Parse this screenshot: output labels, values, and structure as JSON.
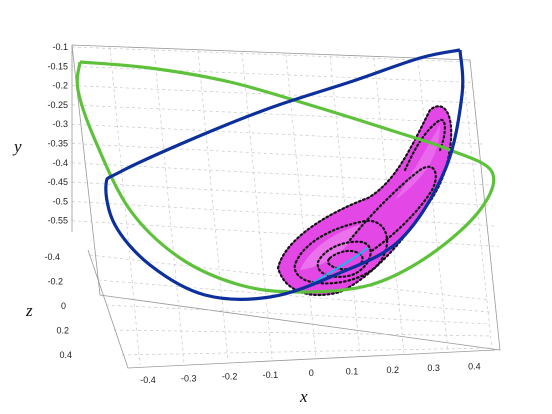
{
  "chart_data": {
    "type": "line",
    "projection": "3d",
    "grid": true,
    "xlabel": "x",
    "ylabel": "y",
    "zlabel": "z",
    "xlim": [
      -0.45,
      0.45
    ],
    "ylim": [
      -0.58,
      -0.1
    ],
    "zlim": [
      -0.4,
      0.4
    ],
    "x_ticks": [
      "-0.4",
      "-0.3",
      "-0.2",
      "-0.1",
      "0",
      "0.1",
      "0.2",
      "0.3",
      "0.4"
    ],
    "y_ticks": [
      "-0.1",
      "-0.15",
      "-0.2",
      "-0.25",
      "-0.3",
      "-0.35",
      "-0.4",
      "-0.45",
      "-0.5",
      "-0.55"
    ],
    "z_ticks": [
      "-0.4",
      "-0.2",
      "0",
      "0.2",
      "0.4"
    ],
    "colors": {
      "green_orbit": "#5ec13b",
      "blue_orbit": "#0c2f9c",
      "surface": "#e23ee6",
      "dotted_orbits": "#111111",
      "cyan_segment": "#19b8e8"
    },
    "series": [
      {
        "style": "solid",
        "color": "#5ec13b",
        "points": [
          [
            -0.35,
            -0.14
          ],
          [
            -0.1,
            -0.17
          ],
          [
            0.15,
            -0.22
          ],
          [
            0.3,
            -0.27
          ],
          [
            0.42,
            -0.34
          ],
          [
            0.47,
            -0.38
          ],
          [
            0.44,
            -0.43
          ],
          [
            0.3,
            -0.5
          ],
          [
            0.1,
            -0.56
          ],
          [
            -0.05,
            -0.56
          ],
          [
            -0.2,
            -0.53
          ],
          [
            -0.3,
            -0.45
          ],
          [
            -0.35,
            -0.3
          ],
          [
            -0.37,
            -0.18
          ],
          [
            -0.35,
            -0.14
          ]
        ]
      },
      {
        "style": "solid",
        "color": "#0c2f9c",
        "points": [
          [
            0.4,
            -0.1
          ],
          [
            0.2,
            -0.14
          ],
          [
            0.0,
            -0.21
          ],
          [
            -0.2,
            -0.3
          ],
          [
            -0.38,
            -0.4
          ],
          [
            -0.38,
            -0.46
          ],
          [
            -0.3,
            -0.55
          ],
          [
            -0.15,
            -0.6
          ],
          [
            0.05,
            -0.58
          ],
          [
            0.25,
            -0.5
          ],
          [
            0.38,
            -0.35
          ],
          [
            0.42,
            -0.15
          ],
          [
            0.4,
            -0.1
          ]
        ]
      }
    ]
  }
}
